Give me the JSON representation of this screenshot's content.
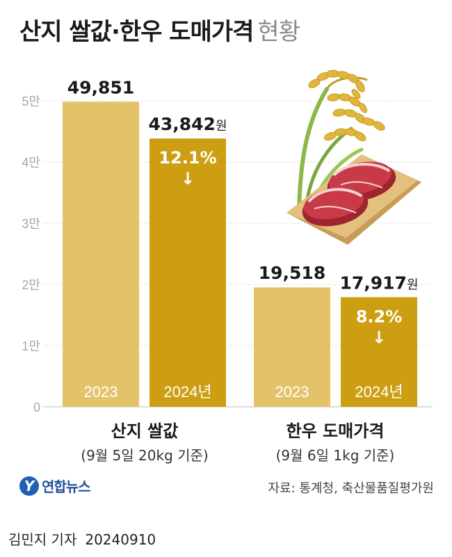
{
  "header": {
    "title": "산지 쌀값·한우 도매가격",
    "subtitle": "현황"
  },
  "chart_data": {
    "type": "bar",
    "y_ticks": [
      "5만",
      "4만",
      "3만",
      "2만",
      "1만",
      "0"
    ],
    "ylim": [
      0,
      50000
    ],
    "colors": {
      "y2023": "#e3c26a",
      "y2024": "#cd9e12",
      "axis_text": "#a8a8a8"
    },
    "groups": [
      {
        "name": "산지 쌀값",
        "note": "(9월 5일 20kg 기준)",
        "bars": [
          {
            "year": "2023",
            "value": 49851,
            "label": "49,851",
            "unit": ""
          },
          {
            "year": "2024년",
            "value": 43842,
            "label": "43,842",
            "unit": "원",
            "change": "12.1%",
            "arrow": "↓"
          }
        ]
      },
      {
        "name": "한우 도매가격",
        "note": "(9월 6일 1kg 기준)",
        "bars": [
          {
            "year": "2023",
            "value": 19518,
            "label": "19,518",
            "unit": ""
          },
          {
            "year": "2024년",
            "value": 17917,
            "label": "17,917",
            "unit": "원",
            "change": "8.2%",
            "arrow": "↓"
          }
        ]
      }
    ]
  },
  "footer": {
    "source": "자료: 통계청, 축산물품질평가원",
    "logo_text": "연합뉴스",
    "logo_mark": "Y"
  },
  "byline": {
    "author": "김민지 기자",
    "date": "20240910"
  },
  "illustration": {
    "icons": [
      "rice-stalk-icon",
      "beef-cutting-board-icon"
    ]
  }
}
